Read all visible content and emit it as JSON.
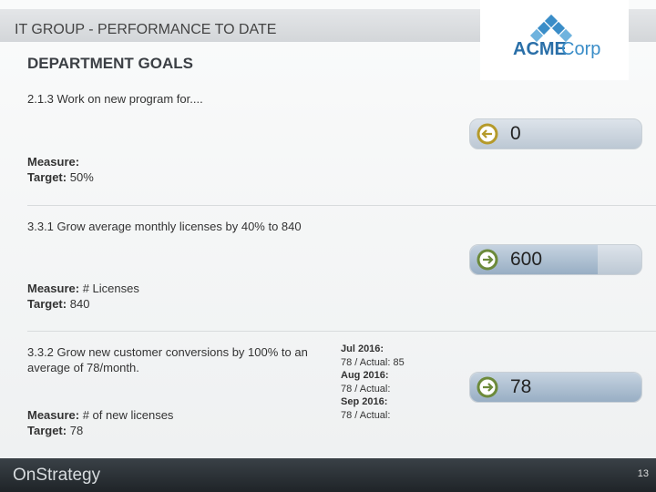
{
  "header": {
    "title": "IT GROUP - PERFORMANCE TO DATE",
    "logo": [
      "ACME",
      "Corp"
    ]
  },
  "section_title": "DEPARTMENT GOALS",
  "goals": [
    {
      "description": "2.1.3 Work on new program for....",
      "measure_label": "Measure:",
      "target_label": "Target:",
      "target": "50%",
      "status": 0
    },
    {
      "description": "3.3.1 Grow average monthly licenses by 40%  to 840",
      "measure_label": "Measure:",
      "measure": "# Licenses",
      "target_label": "Target:",
      "target": "840",
      "status": 600
    },
    {
      "description": "3.3.2 Grow new customer conversions by 100% to an average of 78/month.",
      "measure_label": "Measure:",
      "measure": "# of new licenses",
      "target_label": "Target:",
      "target": "78",
      "status": 78,
      "notes": [
        "Jul 2016:",
        "78 / Actual: 85",
        "Aug 2016:",
        "78 / Actual:",
        "Sep 2016:",
        "78 / Actual:"
      ]
    }
  ],
  "footer": {
    "brand": "OnStrategy",
    "page": 13
  }
}
